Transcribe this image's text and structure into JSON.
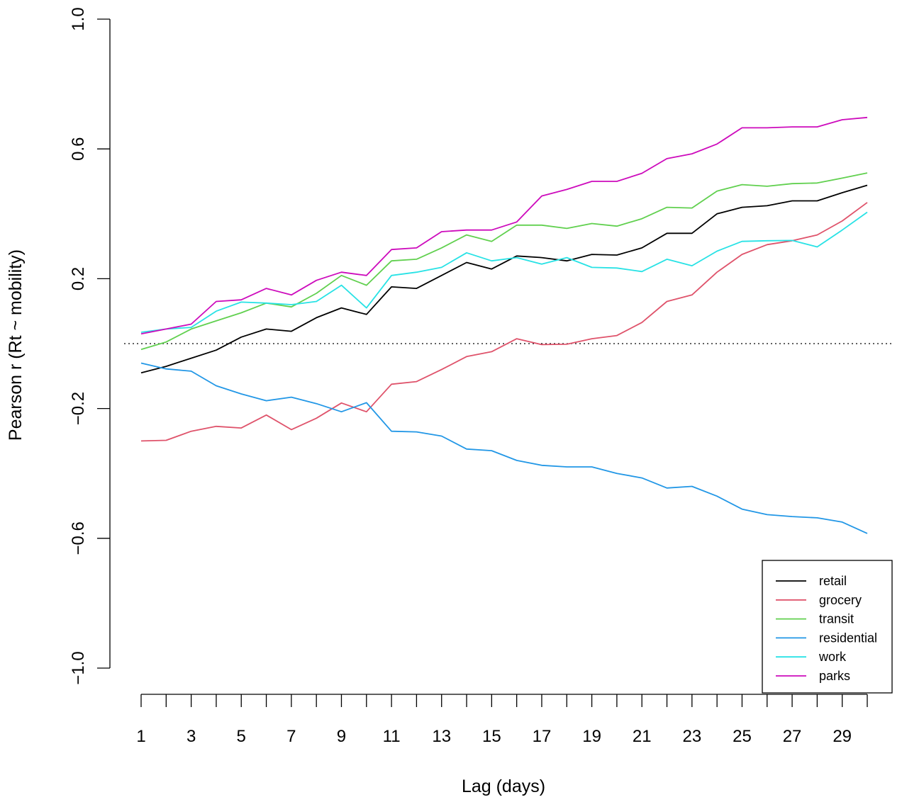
{
  "chart_data": {
    "type": "line",
    "title": "",
    "xlabel": "Lag (days)",
    "ylabel": "Pearson r (Rt ~ mobility)",
    "x": [
      1,
      2,
      3,
      4,
      5,
      6,
      7,
      8,
      9,
      10,
      11,
      12,
      13,
      14,
      15,
      16,
      17,
      18,
      19,
      20,
      21,
      22,
      23,
      24,
      25,
      26,
      27,
      28,
      29,
      30
    ],
    "xlim": [
      1,
      30
    ],
    "ylim": [
      -1.0,
      1.0
    ],
    "x_tick_labels": [
      "1",
      "3",
      "5",
      "7",
      "9",
      "11",
      "13",
      "15",
      "17",
      "19",
      "21",
      "23",
      "25",
      "27",
      "29"
    ],
    "y_tick_labels": [
      "-1.0",
      "-0.6",
      "-0.2",
      "0.2",
      "0.6",
      "1.0"
    ],
    "y_ticks": [
      -1.0,
      -0.6,
      -0.2,
      0.2,
      0.6,
      1.0
    ],
    "reference_line": {
      "y": 0.0,
      "style": "dotted"
    },
    "legend_position": "bottom-right",
    "grid": false,
    "series": [
      {
        "name": "retail",
        "color": "#000000",
        "values": [
          -0.09,
          -0.07,
          -0.045,
          -0.02,
          0.02,
          0.045,
          0.038,
          0.08,
          0.11,
          0.09,
          0.175,
          0.17,
          0.21,
          0.25,
          0.23,
          0.27,
          0.265,
          0.255,
          0.275,
          0.273,
          0.295,
          0.34,
          0.34,
          0.4,
          0.42,
          0.425,
          0.44,
          0.44,
          0.465,
          0.488
        ]
      },
      {
        "name": "grocery",
        "color": "#DF536B",
        "values": [
          -0.3,
          -0.298,
          -0.27,
          -0.255,
          -0.26,
          -0.22,
          -0.265,
          -0.23,
          -0.183,
          -0.21,
          -0.125,
          -0.117,
          -0.08,
          -0.04,
          -0.025,
          0.015,
          -0.003,
          -0.002,
          0.015,
          0.025,
          0.065,
          0.13,
          0.15,
          0.22,
          0.275,
          0.305,
          0.317,
          0.335,
          0.378,
          0.435
        ]
      },
      {
        "name": "transit",
        "color": "#61D04F",
        "values": [
          -0.018,
          0.005,
          0.045,
          0.07,
          0.095,
          0.125,
          0.113,
          0.155,
          0.21,
          0.18,
          0.255,
          0.26,
          0.295,
          0.335,
          0.315,
          0.365,
          0.365,
          0.355,
          0.37,
          0.362,
          0.385,
          0.42,
          0.418,
          0.47,
          0.49,
          0.485,
          0.493,
          0.495,
          0.51,
          0.526
        ]
      },
      {
        "name": "residential",
        "color": "#2297E6",
        "values": [
          -0.06,
          -0.078,
          -0.085,
          -0.13,
          -0.155,
          -0.176,
          -0.165,
          -0.185,
          -0.21,
          -0.182,
          -0.27,
          -0.272,
          -0.285,
          -0.325,
          -0.33,
          -0.36,
          -0.375,
          -0.38,
          -0.38,
          -0.4,
          -0.414,
          -0.445,
          -0.44,
          -0.47,
          -0.51,
          -0.527,
          -0.533,
          -0.537,
          -0.55,
          -0.585
        ]
      },
      {
        "name": "work",
        "color": "#28E2E5",
        "values": [
          0.035,
          0.045,
          0.05,
          0.1,
          0.128,
          0.125,
          0.12,
          0.13,
          0.18,
          0.11,
          0.21,
          0.22,
          0.235,
          0.28,
          0.255,
          0.265,
          0.245,
          0.265,
          0.235,
          0.233,
          0.222,
          0.26,
          0.24,
          0.285,
          0.315,
          0.317,
          0.318,
          0.298,
          0.35,
          0.405
        ]
      },
      {
        "name": "parks",
        "color": "#CD0BBC",
        "values": [
          0.03,
          0.045,
          0.06,
          0.13,
          0.135,
          0.17,
          0.15,
          0.195,
          0.22,
          0.21,
          0.29,
          0.295,
          0.345,
          0.35,
          0.35,
          0.375,
          0.455,
          0.475,
          0.5,
          0.5,
          0.525,
          0.57,
          0.585,
          0.615,
          0.665,
          0.665,
          0.668,
          0.668,
          0.69,
          0.697
        ]
      }
    ]
  }
}
